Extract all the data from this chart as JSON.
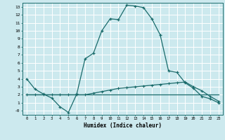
{
  "title": "",
  "xlabel": "Humidex (Indice chaleur)",
  "ylabel": "",
  "background_color": "#cce9ee",
  "grid_color": "#ffffff",
  "line_color": "#1a6b6b",
  "xlim": [
    -0.5,
    23.5
  ],
  "ylim": [
    -0.5,
    13.5
  ],
  "xticks": [
    0,
    1,
    2,
    3,
    4,
    5,
    6,
    7,
    8,
    9,
    10,
    11,
    12,
    13,
    14,
    15,
    16,
    17,
    18,
    19,
    20,
    21,
    22,
    23
  ],
  "yticks": [
    0,
    1,
    2,
    3,
    4,
    5,
    6,
    7,
    8,
    9,
    10,
    11,
    12,
    13
  ],
  "curve1_x": [
    0,
    1,
    2,
    3,
    4,
    5,
    6,
    7,
    8,
    9,
    10,
    11,
    12,
    13,
    14,
    15,
    16,
    17,
    18,
    19,
    20,
    21,
    22,
    23
  ],
  "curve1_y": [
    4.0,
    2.7,
    2.1,
    1.6,
    0.5,
    -0.2,
    2.1,
    6.5,
    7.2,
    10.0,
    11.5,
    11.4,
    13.2,
    13.1,
    12.9,
    11.5,
    9.5,
    5.0,
    4.8,
    3.5,
    2.8,
    1.8,
    1.5,
    1.0
  ],
  "curve2_x": [
    0,
    1,
    2,
    3,
    4,
    5,
    6,
    7,
    8,
    9,
    10,
    11,
    12,
    13,
    14,
    15,
    16,
    17,
    18,
    19,
    20,
    21,
    22,
    23
  ],
  "curve2_y": [
    2.0,
    2.0,
    2.0,
    2.0,
    2.0,
    2.0,
    2.0,
    2.0,
    2.2,
    2.4,
    2.6,
    2.8,
    2.9,
    3.0,
    3.1,
    3.2,
    3.3,
    3.4,
    3.5,
    3.6,
    3.0,
    2.5,
    1.8,
    1.2
  ],
  "curve3_x": [
    0,
    1,
    2,
    3,
    4,
    5,
    6,
    7,
    8,
    9,
    10,
    11,
    12,
    13,
    14,
    15,
    16,
    17,
    18,
    19,
    20,
    21,
    22,
    23
  ],
  "curve3_y": [
    2.0,
    2.0,
    2.0,
    2.0,
    2.0,
    2.0,
    2.0,
    2.0,
    2.0,
    2.0,
    2.0,
    2.0,
    2.0,
    2.0,
    2.0,
    2.0,
    2.0,
    2.0,
    2.0,
    2.0,
    2.0,
    2.0,
    2.0,
    2.0
  ]
}
